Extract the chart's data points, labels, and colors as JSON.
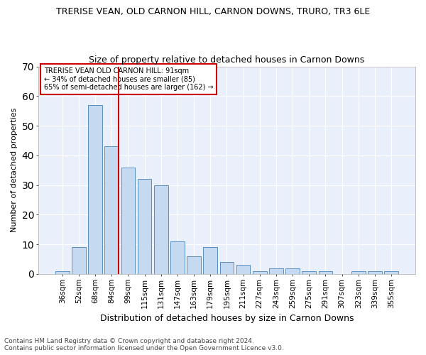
{
  "title1": "TRERISE VEAN, OLD CARNON HILL, CARNON DOWNS, TRURO, TR3 6LE",
  "title2": "Size of property relative to detached houses in Carnon Downs",
  "xlabel": "Distribution of detached houses by size in Carnon Downs",
  "ylabel": "Number of detached properties",
  "categories": [
    "36sqm",
    "52sqm",
    "68sqm",
    "84sqm",
    "99sqm",
    "115sqm",
    "131sqm",
    "147sqm",
    "163sqm",
    "179sqm",
    "195sqm",
    "211sqm",
    "227sqm",
    "243sqm",
    "259sqm",
    "275sqm",
    "291sqm",
    "307sqm",
    "323sqm",
    "339sqm",
    "355sqm"
  ],
  "values": [
    1,
    9,
    57,
    43,
    36,
    32,
    30,
    11,
    6,
    9,
    4,
    3,
    1,
    2,
    2,
    1,
    1,
    0,
    1,
    1,
    1
  ],
  "bar_color": "#c5d9f0",
  "bar_edge_color": "#5a8fc0",
  "vline_color": "#cc0000",
  "annotation_text": "TRERISE VEAN OLD CARNON HILL: 91sqm\n← 34% of detached houses are smaller (85)\n65% of semi-detached houses are larger (162) →",
  "ylim": [
    0,
    70
  ],
  "yticks": [
    0,
    10,
    20,
    30,
    40,
    50,
    60,
    70
  ],
  "footnote": "Contains HM Land Registry data © Crown copyright and database right 2024.\nContains public sector information licensed under the Open Government Licence v3.0.",
  "bg_color": "#eaf0fb",
  "grid_color": "#ffffff",
  "title1_fontsize": 9,
  "title2_fontsize": 9,
  "xlabel_fontsize": 9,
  "ylabel_fontsize": 8,
  "tick_fontsize": 7.5,
  "footnote_fontsize": 6.5
}
